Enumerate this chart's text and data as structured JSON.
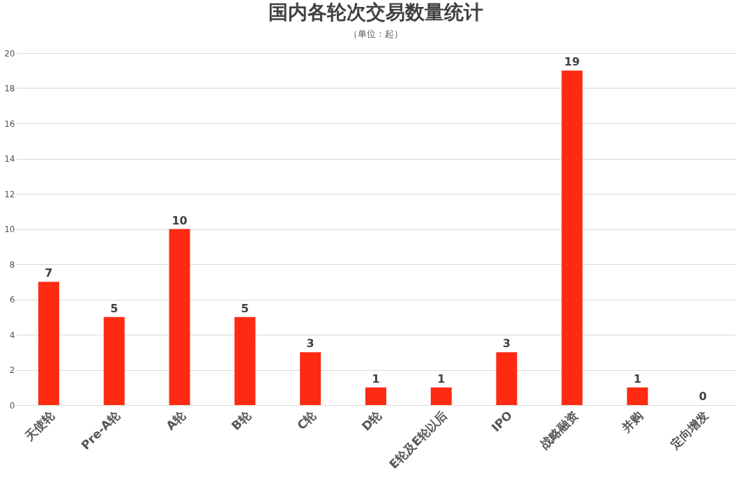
{
  "chart_data": {
    "type": "bar",
    "title": "国内各轮次交易数量统计",
    "subtitle": "（单位：起）",
    "categories": [
      "天使轮",
      "Pre-A轮",
      "A轮",
      "B轮",
      "C轮",
      "D轮",
      "E轮及E轮以后",
      "IPO",
      "战略融资",
      "并购",
      "定向增发"
    ],
    "values": [
      7,
      5,
      10,
      5,
      3,
      1,
      1,
      3,
      19,
      1,
      0
    ],
    "color": "#fe2a12",
    "ylim": [
      0,
      20
    ],
    "yticks": [
      0,
      2,
      4,
      6,
      8,
      10,
      12,
      14,
      16,
      18,
      20
    ],
    "grid": "y",
    "data_labels": true
  }
}
